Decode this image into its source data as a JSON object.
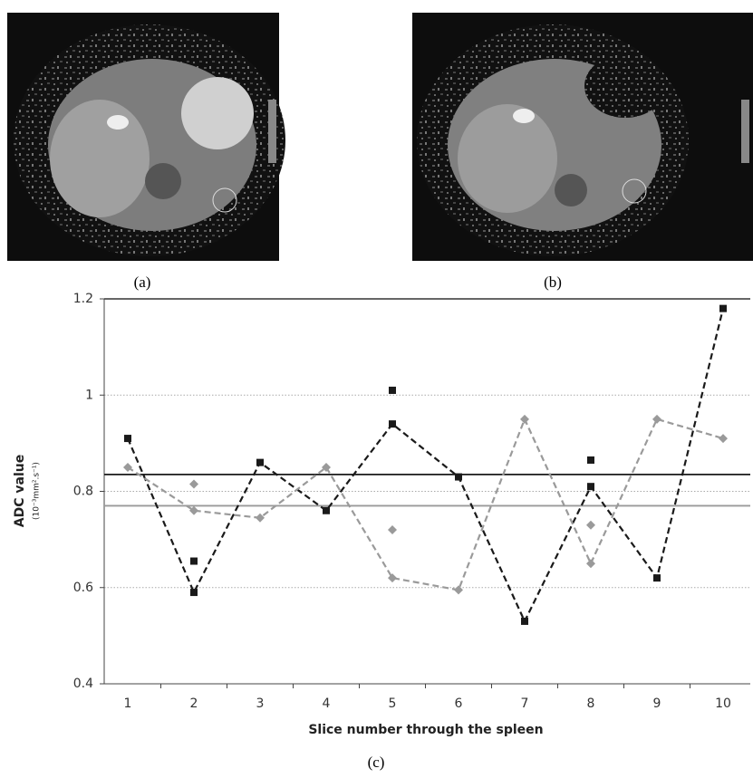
{
  "captions": [
    "(a)",
    "(b)",
    "(c)"
  ],
  "chart_data": {
    "type": "line",
    "y_label": "ADC value",
    "y_unit": "(10⁻³mm².s⁻¹)",
    "x_label": "Slice number through the spleen",
    "categories": [
      "1",
      "2",
      "3",
      "4",
      "5",
      "6",
      "7",
      "8",
      "9",
      "10"
    ],
    "series": [
      {
        "color": "#1a1a1a",
        "marker": "square",
        "dashed": true,
        "line": true,
        "values": [
          0.91,
          0.59,
          0.86,
          0.76,
          0.94,
          0.83,
          0.53,
          0.81,
          0.62,
          1.18
        ]
      },
      {
        "color": "#9a9a9a",
        "marker": "diamond",
        "dashed": true,
        "line": true,
        "values": [
          0.85,
          0.76,
          0.745,
          0.85,
          0.62,
          0.595,
          0.95,
          0.65,
          0.95,
          0.91
        ]
      },
      {
        "color": "#1a1a1a",
        "marker": "square",
        "dashed": false,
        "line": false,
        "values": [
          null,
          0.655,
          null,
          null,
          1.01,
          null,
          null,
          0.865,
          null,
          null
        ]
      },
      {
        "color": "#9a9a9a",
        "marker": "diamond",
        "dashed": false,
        "line": false,
        "values": [
          null,
          0.815,
          null,
          null,
          0.72,
          null,
          null,
          0.73,
          null,
          null
        ]
      }
    ],
    "reference_lines": [
      {
        "value": 0.835,
        "color": "#1a1a1a"
      },
      {
        "value": 0.77,
        "color": "#9a9a9a"
      }
    ],
    "ylim": [
      0.4,
      1.2
    ],
    "yticks": [
      0.4,
      0.6,
      0.8,
      1,
      1.2
    ],
    "grid": true
  }
}
